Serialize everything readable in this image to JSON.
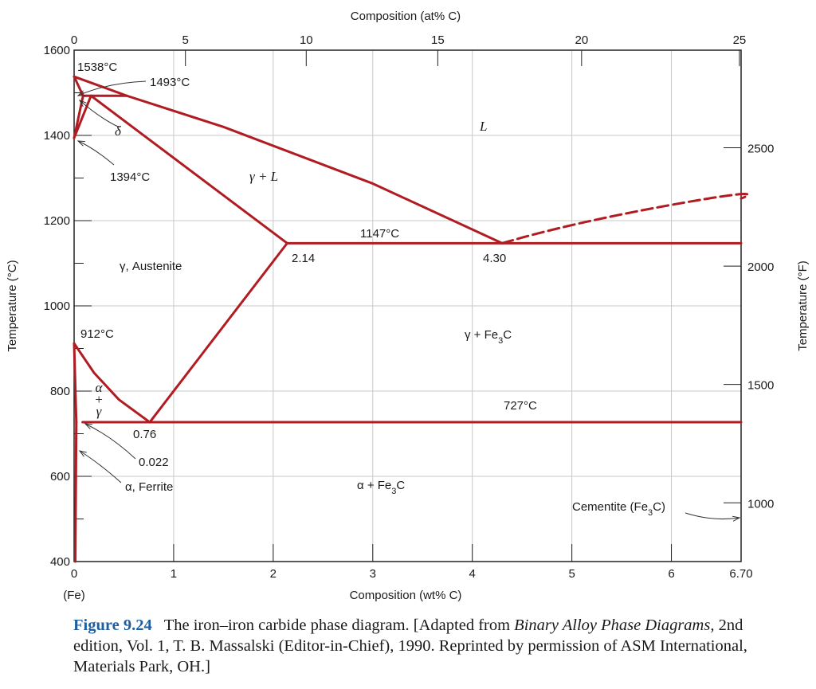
{
  "chart_data": {
    "type": "line",
    "xlabel": "Composition (wt% C)",
    "xlabel_top": "Composition (at% C)",
    "ylabel": "Temperature (°C)",
    "ylabel_right": "Temperature (°F)",
    "xlim": [
      0,
      6.7
    ],
    "ylim": [
      400,
      1600
    ],
    "x_ticks": [
      "0",
      "1",
      "2",
      "3",
      "4",
      "5",
      "6",
      "6.70"
    ],
    "x_tick_values": [
      0,
      1,
      2,
      3,
      4,
      5,
      6,
      6.7
    ],
    "x_origin_label": "(Fe)",
    "top_ticks": [
      "0",
      "5",
      "10",
      "15",
      "20",
      "25"
    ],
    "top_tick_values_at": [
      0,
      5,
      10,
      15,
      20,
      25
    ],
    "y_ticks": [
      "400",
      "600",
      "800",
      "1000",
      "1200",
      "1400",
      "1600"
    ],
    "y_tick_values": [
      400,
      600,
      800,
      1000,
      1200,
      1400,
      1600
    ],
    "right_ticks": [
      "1000",
      "1500",
      "2000",
      "2500"
    ],
    "right_tick_values_F": [
      1000,
      1500,
      2000,
      2500
    ],
    "grid": true,
    "series": [
      {
        "id": "liquidus-delta",
        "points": [
          [
            0,
            1538
          ],
          [
            0.53,
            1493
          ]
        ]
      },
      {
        "id": "liquidus-main",
        "points": [
          [
            0.53,
            1493
          ],
          [
            1.5,
            1420
          ],
          [
            3.0,
            1287
          ],
          [
            4.3,
            1147
          ]
        ]
      },
      {
        "id": "liquidus-cementite",
        "dashed": true,
        "points": [
          [
            4.3,
            1147
          ],
          [
            5.0,
            1195
          ],
          [
            6.0,
            1237
          ],
          [
            6.7,
            1252
          ]
        ]
      },
      {
        "id": "delta-solidus",
        "points": [
          [
            0,
            1538
          ],
          [
            0.09,
            1493
          ]
        ]
      },
      {
        "id": "peritectic-line",
        "points": [
          [
            0.09,
            1493
          ],
          [
            0.53,
            1493
          ]
        ]
      },
      {
        "id": "delta-solvus-upper",
        "points": [
          [
            0,
            1394
          ],
          [
            0.09,
            1493
          ]
        ]
      },
      {
        "id": "delta-solvus-lower",
        "points": [
          [
            0,
            1394
          ],
          [
            0.17,
            1493
          ]
        ]
      },
      {
        "id": "austenite-solidus",
        "points": [
          [
            0.17,
            1493
          ],
          [
            2.14,
            1147
          ]
        ]
      },
      {
        "id": "eutectic-line",
        "points": [
          [
            2.14,
            1147
          ],
          [
            6.7,
            1147
          ]
        ]
      },
      {
        "id": "acm-line",
        "points": [
          [
            2.14,
            1147
          ],
          [
            0.76,
            727
          ]
        ]
      },
      {
        "id": "a3-line",
        "points": [
          [
            0,
            912
          ],
          [
            0.2,
            843
          ],
          [
            0.45,
            780
          ],
          [
            0.76,
            727
          ]
        ]
      },
      {
        "id": "alpha-gamma-boundary",
        "points": [
          [
            0,
            912
          ],
          [
            0.022,
            727
          ]
        ]
      },
      {
        "id": "eutectoid-line",
        "points": [
          [
            0.085,
            727
          ],
          [
            6.7,
            727
          ]
        ]
      },
      {
        "id": "ferrite-solvus",
        "points": [
          [
            0.022,
            727
          ],
          [
            0.012,
            400
          ]
        ]
      }
    ],
    "annotations": [
      {
        "id": "t1538",
        "text": "1538°C"
      },
      {
        "id": "t1493",
        "text": "1493°C"
      },
      {
        "id": "delta",
        "text": "δ"
      },
      {
        "id": "t1394",
        "text": "1394°C"
      },
      {
        "id": "L",
        "text": "L"
      },
      {
        "id": "gammaL",
        "text": "γ + L"
      },
      {
        "id": "t1147",
        "text": "1147°C"
      },
      {
        "id": "c214",
        "text": "2.14"
      },
      {
        "id": "c430",
        "text": "4.30"
      },
      {
        "id": "austenite",
        "text": "γ, Austenite"
      },
      {
        "id": "t912",
        "text": "912°C"
      },
      {
        "id": "gammaFe3C",
        "text": "γ + Fe3C"
      },
      {
        "id": "alphaGamma",
        "text": "α + γ"
      },
      {
        "id": "t727",
        "text": "727°C"
      },
      {
        "id": "c076",
        "text": "0.76"
      },
      {
        "id": "c0022",
        "text": "0.022"
      },
      {
        "id": "ferrite",
        "text": "α, Ferrite"
      },
      {
        "id": "alphaFe3C",
        "text": "α + Fe3C"
      },
      {
        "id": "cementite",
        "text": "Cementite (Fe3C)"
      }
    ],
    "colors": {
      "phase_line": "#b01c22",
      "grid": "#c8c8c8"
    }
  },
  "caption": {
    "figure_number": "Figure 9.24",
    "text_before": "The iron–iron carbide phase diagram. [Adapted from ",
    "book_title": "Binary Alloy Phase Diagrams,",
    "text_after": " 2nd edition, Vol. 1, T. B. Massalski (Editor-in-Chief), 1990. Reprinted by permission of ASM International, Materials Park, OH.]"
  }
}
